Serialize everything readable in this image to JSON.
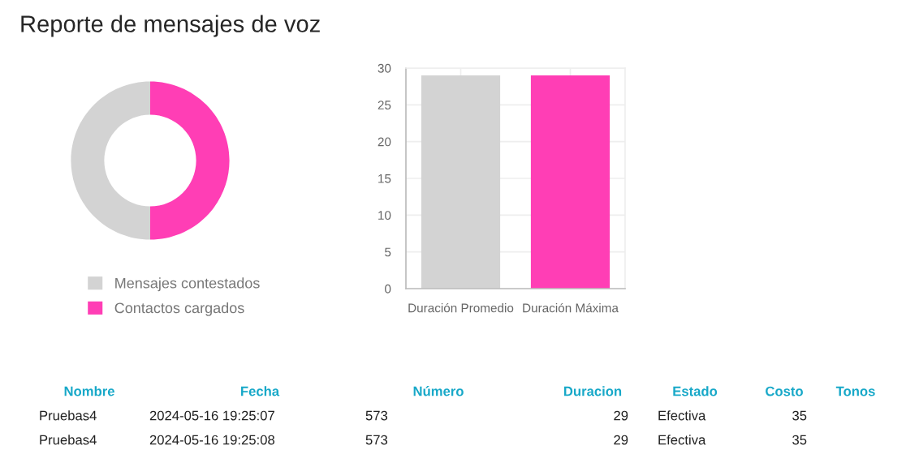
{
  "chart_data": [
    {
      "type": "donut",
      "title": "Reporte de mensajes de voz",
      "categories": [
        "Mensajes contestados",
        "Contactos cargados"
      ],
      "values": [
        50,
        50
      ],
      "colors": [
        "#d3d3d3",
        "#ff3eb5"
      ],
      "legend": "bottom"
    },
    {
      "type": "bar",
      "categories": [
        "Duración Promedio",
        "Duración Máxima"
      ],
      "values": [
        29,
        29
      ],
      "colors": [
        "#d3d3d3",
        "#ff3eb5"
      ],
      "ylim": [
        0,
        30
      ],
      "yticks": [
        0,
        5,
        10,
        15,
        20,
        25,
        30
      ],
      "grid": true
    },
    {
      "type": "other",
      "annotations": [
        "Nombre",
        "Fecha",
        "Número",
        "Duracion",
        "Estado",
        "Costo",
        "Tonos",
        "Pruebas4",
        "2024-05-16 19:25:07",
        "573",
        "29",
        "Efectiva",
        "35",
        "Pruebas4",
        "2024-05-16 19:25:08",
        "573",
        "29",
        "Efectiva",
        "35"
      ]
    }
  ]
}
